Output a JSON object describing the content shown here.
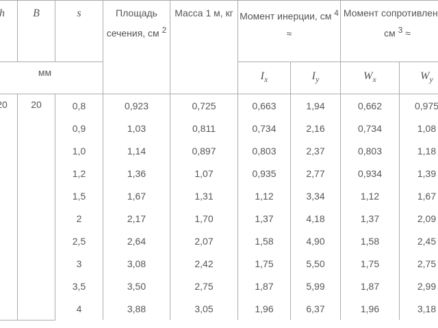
{
  "header": {
    "h": "h",
    "b": "B",
    "s": "s",
    "unit_mm": "мм",
    "area": "Площадь сечения, см",
    "area_sup": "2",
    "mass": "Масса 1 м, кг",
    "inertia": "Момент инерции, см",
    "inertia_sup": "4",
    "inertia_approx": "≈",
    "resistance": "Момент сопротивления, см",
    "resistance_sup": "3",
    "resistance_approx": "≈",
    "ix": {
      "sym": "I",
      "sub": "x"
    },
    "iy": {
      "sym": "I",
      "sub": "y"
    },
    "wx": {
      "sym": "W",
      "sub": "x"
    },
    "wy": {
      "sym": "W",
      "sub": "y"
    }
  },
  "table": {
    "h": "20",
    "b": "20",
    "rows": [
      [
        "0,8",
        "0,923",
        "0,725",
        "0,663",
        "1,94",
        "0,662",
        "0,975"
      ],
      [
        "0,9",
        "1,03",
        "0,811",
        "0,734",
        "2,16",
        "0,734",
        "1,08"
      ],
      [
        "1,0",
        "1,14",
        "0,897",
        "0,803",
        "2,37",
        "0,803",
        "1,18"
      ],
      [
        "1,2",
        "1,36",
        "1,07",
        "0,935",
        "2,77",
        "0,934",
        "1,39"
      ],
      [
        "1,5",
        "1,67",
        "1,31",
        "1,12",
        "3,34",
        "1,12",
        "1,67"
      ],
      [
        "2",
        "2,17",
        "1,70",
        "1,37",
        "4,18",
        "1,37",
        "2,09"
      ],
      [
        "2,5",
        "2,64",
        "2,07",
        "1,58",
        "4,90",
        "1,58",
        "2,45"
      ],
      [
        "3",
        "3,08",
        "2,42",
        "1,75",
        "5,50",
        "1,75",
        "2,75"
      ],
      [
        "3,5",
        "3,50",
        "2,75",
        "1,87",
        "5,99",
        "1,87",
        "2,99"
      ],
      [
        "4",
        "3,88",
        "3,05",
        "1,96",
        "6,37",
        "1,96",
        "3,18"
      ]
    ]
  }
}
